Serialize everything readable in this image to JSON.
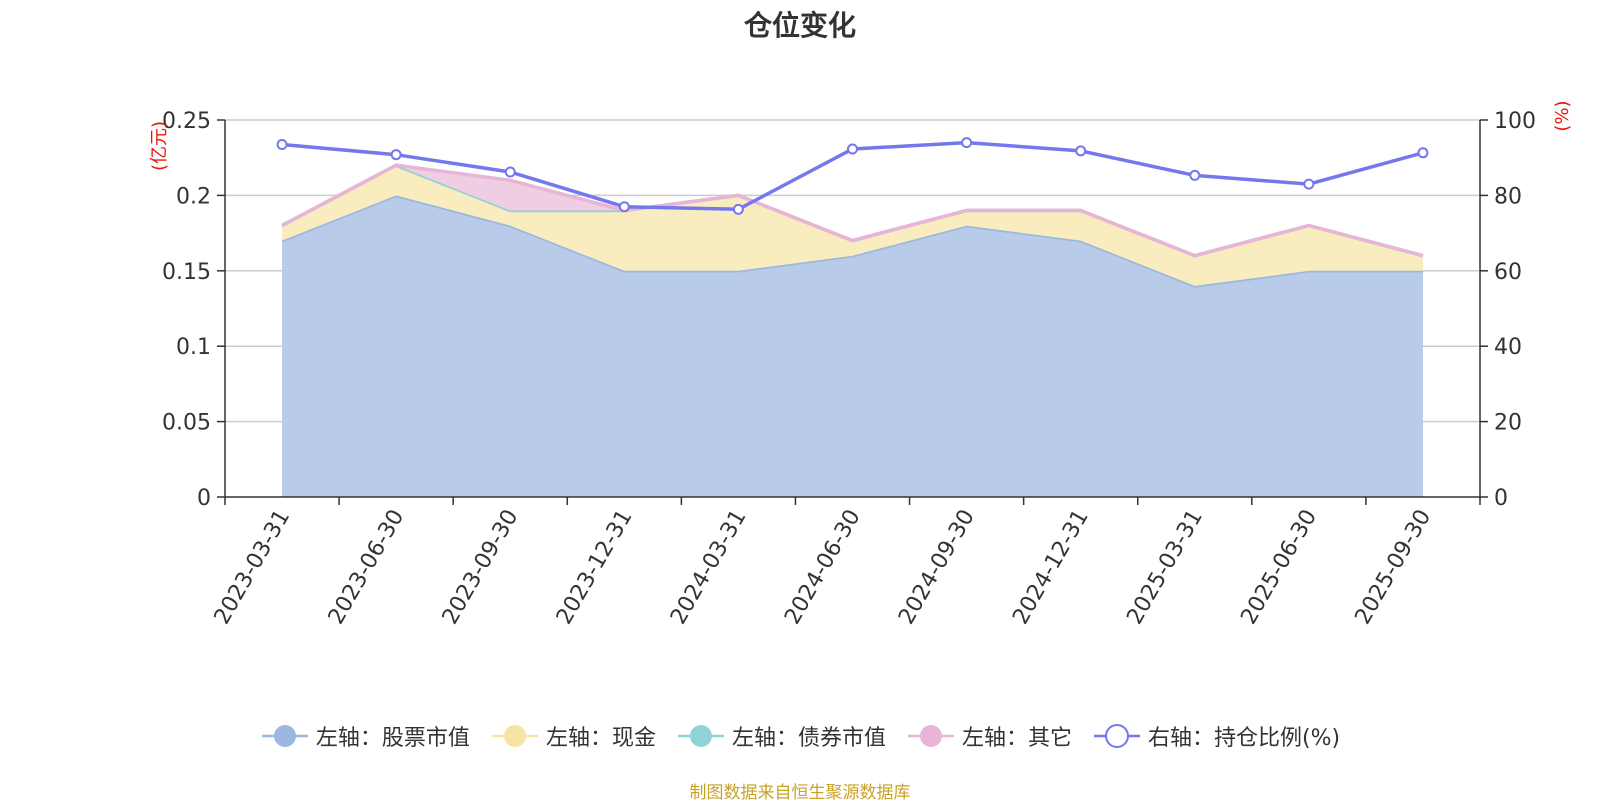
{
  "chart_data": {
    "type": "area",
    "title": "仓位变化",
    "categories": [
      "2023-03-31",
      "2023-06-30",
      "2023-09-30",
      "2023-12-31",
      "2024-03-31",
      "2024-06-30",
      "2024-09-30",
      "2024-12-31",
      "2025-03-31",
      "2025-06-30",
      "2025-09-30"
    ],
    "left_axis": {
      "unit": "(亿元)",
      "ylim": [
        0,
        0.25
      ],
      "ticks": [
        0,
        0.05,
        0.1,
        0.15,
        0.2,
        0.25
      ],
      "tick_labels": [
        "0",
        "0.05",
        "0.1",
        "0.15",
        "0.2",
        "0.25"
      ]
    },
    "right_axis": {
      "unit": "(%)",
      "ylim": [
        0,
        100
      ],
      "ticks": [
        0,
        20,
        40,
        60,
        80,
        100
      ],
      "tick_labels": [
        "0",
        "20",
        "40",
        "60",
        "80",
        "100"
      ]
    },
    "series": [
      {
        "name": "左轴：股票市值",
        "axis": "left",
        "kind": "stacked-area",
        "color": "#9db8e0",
        "fill": "#b8cce9",
        "values": [
          0.17,
          0.2,
          0.18,
          0.15,
          0.15,
          0.16,
          0.18,
          0.17,
          0.14,
          0.15,
          0.15
        ]
      },
      {
        "name": "左轴：现金",
        "axis": "left",
        "kind": "stacked-area",
        "color": "#f7e3a3",
        "fill": "#f9edc0",
        "values": [
          0.01,
          0.02,
          0.01,
          0.04,
          0.05,
          0.01,
          0.01,
          0.02,
          0.02,
          0.03,
          0.01
        ]
      },
      {
        "name": "左轴：债券市值",
        "axis": "left",
        "kind": "stacked-area",
        "color": "#8fd3d6",
        "fill": "#bfe6e8",
        "values": [
          0,
          0,
          0,
          0,
          0,
          0,
          0,
          0,
          0,
          0,
          0
        ]
      },
      {
        "name": "左轴：其它",
        "axis": "left",
        "kind": "stacked-area",
        "color": "#e8b5d8",
        "fill": "#efcde3",
        "values": [
          0,
          0,
          0.02,
          0,
          0,
          0,
          0,
          0,
          0,
          0,
          0
        ]
      },
      {
        "name": "右轴：持仓比例(%)",
        "axis": "right",
        "kind": "line",
        "color": "#7577ee",
        "values": [
          93.5,
          90.8,
          86.2,
          77.0,
          76.3,
          92.3,
          94.0,
          91.8,
          85.3,
          83.0,
          91.3
        ]
      }
    ],
    "legend_position": "bottom",
    "grid": true
  },
  "source_note": "制图数据来自恒生聚源数据库"
}
